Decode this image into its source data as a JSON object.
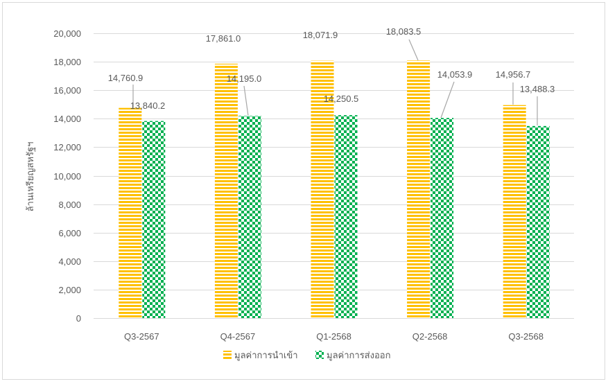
{
  "chart_data": {
    "type": "bar",
    "categories": [
      "Q3-2567",
      "Q4-2567",
      "Q1-2568",
      "Q2-2568",
      "Q3-2568"
    ],
    "series": [
      {
        "name": "มูลค่าการนำเข้า",
        "values": [
          14760.9,
          17861.0,
          18071.9,
          18083.5,
          14956.7
        ],
        "color": "#FFC000",
        "fill": "horizontal-stripes"
      },
      {
        "name": "มูลค่าการส่งออก",
        "values": [
          13840.2,
          14195.0,
          14250.5,
          14053.9,
          13488.3
        ],
        "color": "#00B050",
        "fill": "checkerboard"
      }
    ],
    "ylabel": "ล้านเหรียญสหรัฐฯ",
    "ylim": [
      0,
      20000
    ],
    "yticks": [
      0,
      2000,
      4000,
      6000,
      8000,
      10000,
      12000,
      14000,
      16000,
      18000,
      20000
    ],
    "grid": true,
    "legend": "bottom",
    "data_labels": true
  }
}
